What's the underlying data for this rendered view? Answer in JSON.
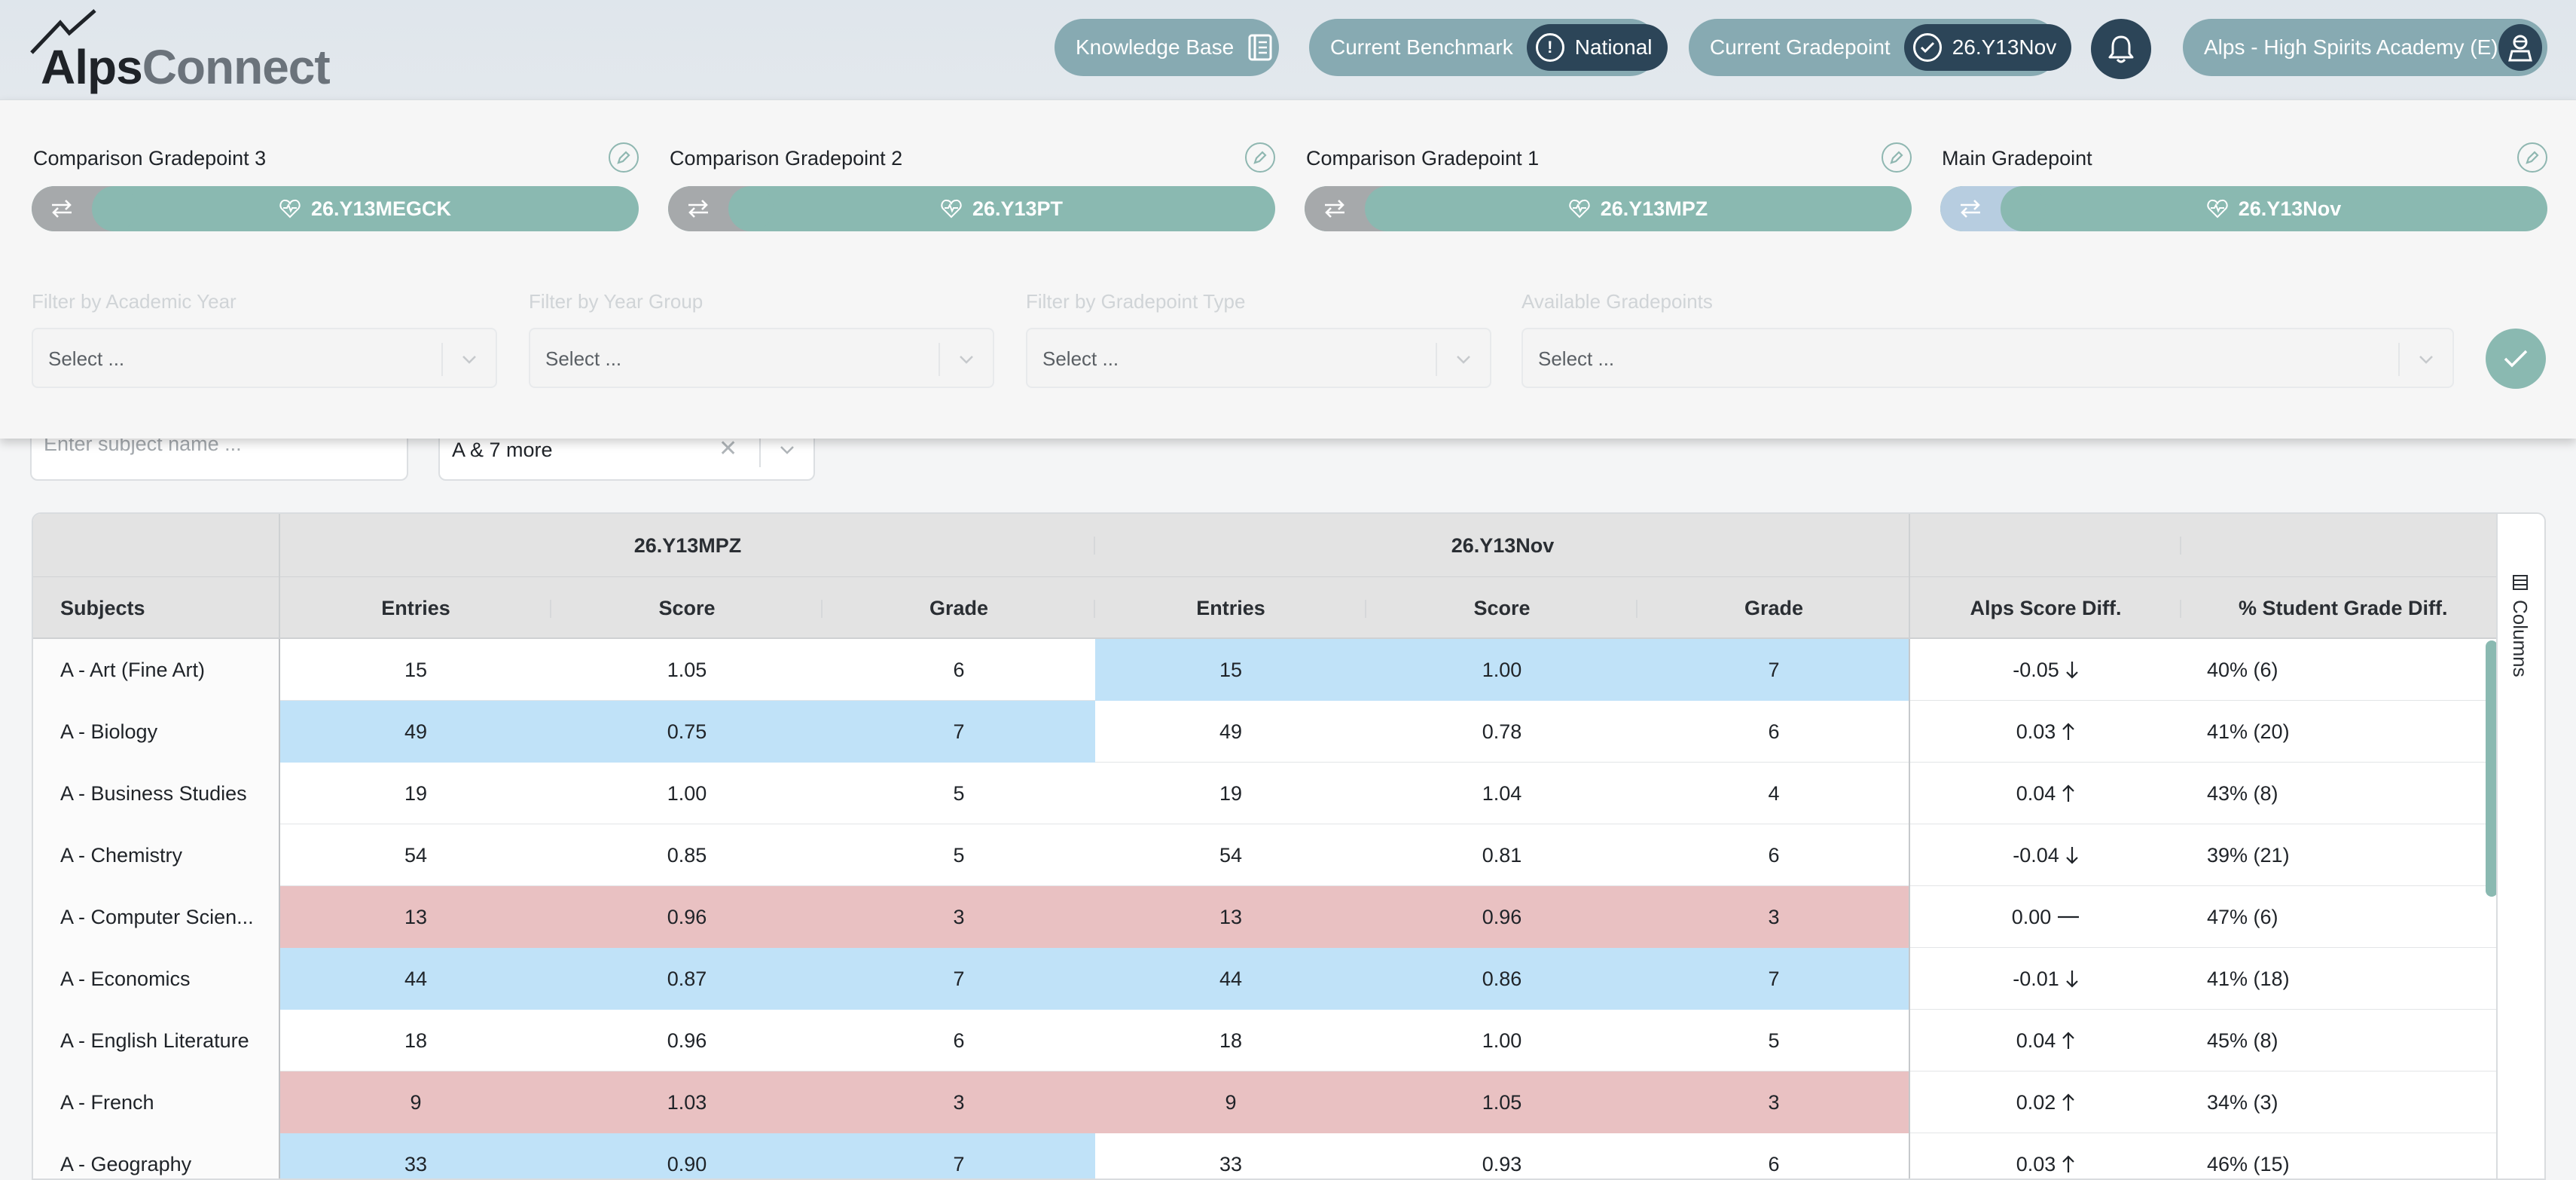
{
  "header": {
    "logo_alps": "Alps",
    "logo_connect": "Connect",
    "knowledge_base": "Knowledge Base",
    "benchmark_label": "Current Benchmark",
    "benchmark_value": "National",
    "gradepoint_label": "Current Gradepoint",
    "gradepoint_value": "26.Y13Nov",
    "user": "Alps - High Spirits Academy (E)"
  },
  "gradepoints": [
    {
      "title": "Comparison Gradepoint 3",
      "value": "26.Y13MEGCK"
    },
    {
      "title": "Comparison Gradepoint 2",
      "value": "26.Y13PT"
    },
    {
      "title": "Comparison Gradepoint 1",
      "value": "26.Y13MPZ"
    },
    {
      "title": "Main Gradepoint",
      "value": "26.Y13Nov"
    }
  ],
  "filters": [
    {
      "label": "Filter by Academic Year",
      "placeholder": "Select ..."
    },
    {
      "label": "Filter by Year Group",
      "placeholder": "Select ..."
    },
    {
      "label": "Filter by Gradepoint Type",
      "placeholder": "Select ..."
    },
    {
      "label": "Available Gradepoints",
      "placeholder": "Select ..."
    }
  ],
  "subject_search": {
    "placeholder": "Enter subject name ..."
  },
  "qualification_select": {
    "value": "A & 7 more"
  },
  "table": {
    "groups": [
      "26.Y13MPZ",
      "26.Y13Nov"
    ],
    "headers": {
      "subjects": "Subjects",
      "entries": "Entries",
      "score": "Score",
      "grade": "Grade",
      "alps_diff": "Alps Score Diff.",
      "pct_diff": "% Student Grade Diff."
    },
    "columns_label": "Columns",
    "rows": [
      {
        "subject": "A - Art (Fine Art)",
        "e1": "15",
        "s1": "1.05",
        "g1": "6",
        "e2": "15",
        "s2": "1.00",
        "g2": "7",
        "diff": "-0.05",
        "trend": "down",
        "pct": "40% (6)",
        "hl1": "",
        "hl2": "blue"
      },
      {
        "subject": "A - Biology",
        "e1": "49",
        "s1": "0.75",
        "g1": "7",
        "e2": "49",
        "s2": "0.78",
        "g2": "6",
        "diff": "0.03",
        "trend": "up",
        "pct": "41% (20)",
        "hl1": "blue",
        "hl2": ""
      },
      {
        "subject": "A - Business Studies",
        "e1": "19",
        "s1": "1.00",
        "g1": "5",
        "e2": "19",
        "s2": "1.04",
        "g2": "4",
        "diff": "0.04",
        "trend": "up",
        "pct": "43% (8)",
        "hl1": "",
        "hl2": ""
      },
      {
        "subject": "A - Chemistry",
        "e1": "54",
        "s1": "0.85",
        "g1": "5",
        "e2": "54",
        "s2": "0.81",
        "g2": "6",
        "diff": "-0.04",
        "trend": "down",
        "pct": "39% (21)",
        "hl1": "",
        "hl2": ""
      },
      {
        "subject": "A - Computer Scien...",
        "e1": "13",
        "s1": "0.96",
        "g1": "3",
        "e2": "13",
        "s2": "0.96",
        "g2": "3",
        "diff": "0.00",
        "trend": "flat",
        "pct": "47% (6)",
        "hl1": "red",
        "hl2": "red"
      },
      {
        "subject": "A - Economics",
        "e1": "44",
        "s1": "0.87",
        "g1": "7",
        "e2": "44",
        "s2": "0.86",
        "g2": "7",
        "diff": "-0.01",
        "trend": "down",
        "pct": "41% (18)",
        "hl1": "blue",
        "hl2": "blue"
      },
      {
        "subject": "A - English Literature",
        "e1": "18",
        "s1": "0.96",
        "g1": "6",
        "e2": "18",
        "s2": "1.00",
        "g2": "5",
        "diff": "0.04",
        "trend": "up",
        "pct": "45% (8)",
        "hl1": "",
        "hl2": ""
      },
      {
        "subject": "A - French",
        "e1": "9",
        "s1": "1.03",
        "g1": "3",
        "e2": "9",
        "s2": "1.05",
        "g2": "3",
        "diff": "0.02",
        "trend": "up",
        "pct": "34% (3)",
        "hl1": "red",
        "hl2": "red"
      },
      {
        "subject": "A - Geography",
        "e1": "33",
        "s1": "0.90",
        "g1": "7",
        "e2": "33",
        "s2": "0.93",
        "g2": "6",
        "diff": "0.03",
        "trend": "up",
        "pct": "46% (15)",
        "hl1": "blue",
        "hl2": ""
      }
    ]
  },
  "colors": {
    "accent_teal": "#8ab9b1",
    "navy": "#2c4558",
    "highlight_blue": "#c0e2f8",
    "highlight_red": "#e9c1c2"
  }
}
